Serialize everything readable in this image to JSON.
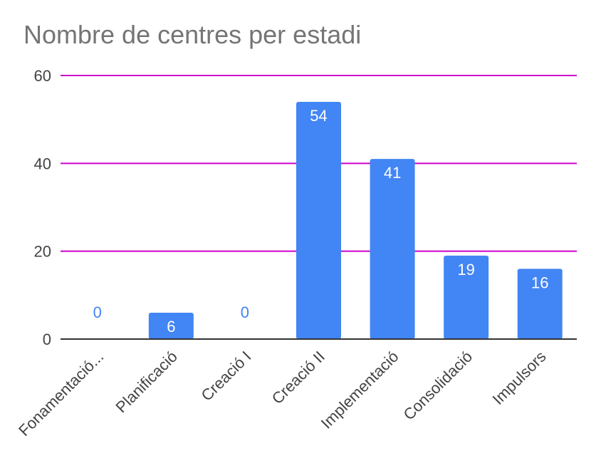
{
  "chart_data": {
    "type": "bar",
    "title": "Nombre de centres per estadi",
    "xlabel": "",
    "ylabel": "",
    "categories": [
      "Fonamentació...",
      "Planificació",
      "Creació I",
      "Creació II",
      "Implementació",
      "Consolidació",
      "Impulsors"
    ],
    "values": [
      0,
      6,
      0,
      54,
      41,
      19,
      16
    ],
    "ylim": [
      0,
      60
    ],
    "yticks": [
      "0",
      "20",
      "40",
      "60"
    ],
    "grid": true,
    "legend": "none",
    "colors": {
      "bar": "#4285f4",
      "gridline": "#cc00cc",
      "axis": "#333333",
      "label_inside": "#ffffff",
      "label_zero": "#4285f4",
      "text": "#444444",
      "title": "#757575"
    }
  }
}
